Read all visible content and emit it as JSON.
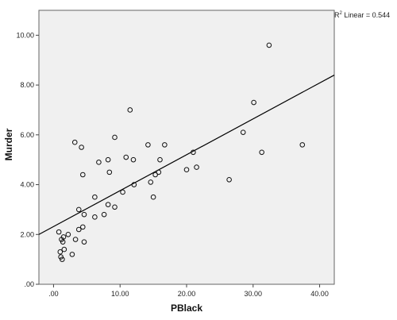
{
  "chart_data": {
    "type": "scatter",
    "xlabel": "PBlack",
    "ylabel": "Murder",
    "xlim": [
      -2.2,
      42.2
    ],
    "ylim": [
      0.0,
      11.0
    ],
    "xticks": [
      0,
      10,
      20,
      30,
      40
    ],
    "xtick_labels": [
      ".00",
      "10.00",
      "20.00",
      "30.00",
      "40.00"
    ],
    "yticks": [
      0,
      2,
      4,
      6,
      8,
      10
    ],
    "ytick_labels": [
      ".00",
      "2.00",
      "4.00",
      "6.00",
      "8.00",
      "10.00"
    ],
    "fit_line": {
      "x": [
        -2.2,
        42.2
      ],
      "y": [
        2.0,
        8.4
      ]
    },
    "annotation": {
      "prefix": "R",
      "superscript": "2",
      "suffix": " Linear = 0.544"
    },
    "points": [
      {
        "x": 0.8,
        "y": 2.1
      },
      {
        "x": 1.0,
        "y": 1.3
      },
      {
        "x": 1.2,
        "y": 1.8
      },
      {
        "x": 1.4,
        "y": 1.7
      },
      {
        "x": 1.1,
        "y": 1.1
      },
      {
        "x": 1.3,
        "y": 1.0
      },
      {
        "x": 1.6,
        "y": 1.4
      },
      {
        "x": 1.5,
        "y": 1.9
      },
      {
        "x": 2.2,
        "y": 2.0
      },
      {
        "x": 2.8,
        "y": 1.2
      },
      {
        "x": 3.3,
        "y": 1.8
      },
      {
        "x": 3.8,
        "y": 2.2
      },
      {
        "x": 4.4,
        "y": 2.3
      },
      {
        "x": 4.6,
        "y": 1.7
      },
      {
        "x": 3.8,
        "y": 3.0
      },
      {
        "x": 4.6,
        "y": 2.8
      },
      {
        "x": 3.2,
        "y": 5.7
      },
      {
        "x": 4.2,
        "y": 5.5
      },
      {
        "x": 4.4,
        "y": 4.4
      },
      {
        "x": 6.2,
        "y": 2.7
      },
      {
        "x": 6.2,
        "y": 3.5
      },
      {
        "x": 6.8,
        "y": 4.9
      },
      {
        "x": 7.6,
        "y": 2.8
      },
      {
        "x": 8.2,
        "y": 3.2
      },
      {
        "x": 8.4,
        "y": 4.5
      },
      {
        "x": 8.2,
        "y": 5.0
      },
      {
        "x": 9.2,
        "y": 5.9
      },
      {
        "x": 9.2,
        "y": 3.1
      },
      {
        "x": 10.4,
        "y": 3.7
      },
      {
        "x": 10.9,
        "y": 5.1
      },
      {
        "x": 11.5,
        "y": 7.0
      },
      {
        "x": 12.0,
        "y": 5.0
      },
      {
        "x": 12.1,
        "y": 4.0
      },
      {
        "x": 14.2,
        "y": 5.6
      },
      {
        "x": 14.6,
        "y": 4.1
      },
      {
        "x": 15.0,
        "y": 3.5
      },
      {
        "x": 15.3,
        "y": 4.4
      },
      {
        "x": 15.8,
        "y": 4.5
      },
      {
        "x": 16.0,
        "y": 5.0
      },
      {
        "x": 16.7,
        "y": 5.6
      },
      {
        "x": 20.0,
        "y": 4.6
      },
      {
        "x": 21.0,
        "y": 5.3
      },
      {
        "x": 21.5,
        "y": 4.7
      },
      {
        "x": 26.4,
        "y": 4.2
      },
      {
        "x": 28.5,
        "y": 6.1
      },
      {
        "x": 30.1,
        "y": 7.3
      },
      {
        "x": 31.3,
        "y": 5.3
      },
      {
        "x": 32.4,
        "y": 9.6
      },
      {
        "x": 37.4,
        "y": 5.6
      }
    ]
  }
}
